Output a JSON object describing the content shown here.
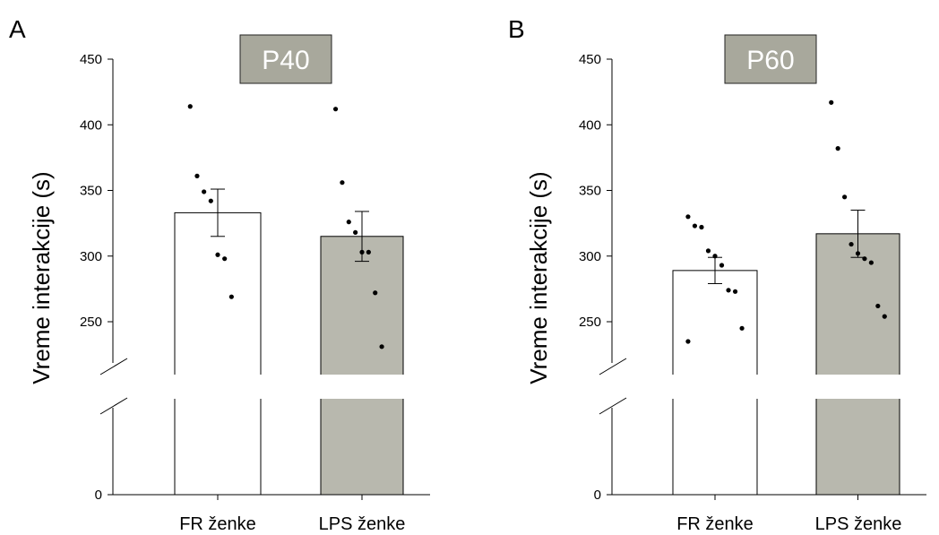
{
  "chart_data": [
    {
      "panel_letter": "A",
      "type": "bar",
      "title": "P40",
      "ylabel": "Vreme interakcije (s)",
      "ylim": [
        0,
        450
      ],
      "axis_break": [
        0,
        215
      ],
      "yticks": [
        0,
        250,
        300,
        350,
        400,
        450
      ],
      "categories": [
        "FR ženke",
        "LPS ženke"
      ],
      "values": [
        333,
        315
      ],
      "errors": [
        18,
        19
      ],
      "bar_colors": [
        "#ffffff",
        "#b8b8ae"
      ],
      "title_box_color": "#a8a89c",
      "points": [
        [
          414,
          361,
          349,
          342,
          301,
          298,
          269
        ],
        [
          412,
          356,
          326,
          318,
          303,
          303,
          272,
          231
        ]
      ]
    },
    {
      "panel_letter": "B",
      "type": "bar",
      "title": "P60",
      "ylabel": "Vreme interakcije (s)",
      "ylim": [
        0,
        450
      ],
      "axis_break": [
        0,
        215
      ],
      "yticks": [
        0,
        250,
        300,
        350,
        400,
        450
      ],
      "categories": [
        "FR ženke",
        "LPS ženke"
      ],
      "values": [
        289,
        317
      ],
      "errors": [
        10,
        18
      ],
      "bar_colors": [
        "#ffffff",
        "#b8b8ae"
      ],
      "title_box_color": "#a8a89c",
      "points": [
        [
          330,
          323,
          322,
          304,
          300,
          293,
          274,
          273,
          245,
          235
        ],
        [
          417,
          382,
          345,
          309,
          302,
          298,
          295,
          262,
          254
        ]
      ]
    }
  ]
}
